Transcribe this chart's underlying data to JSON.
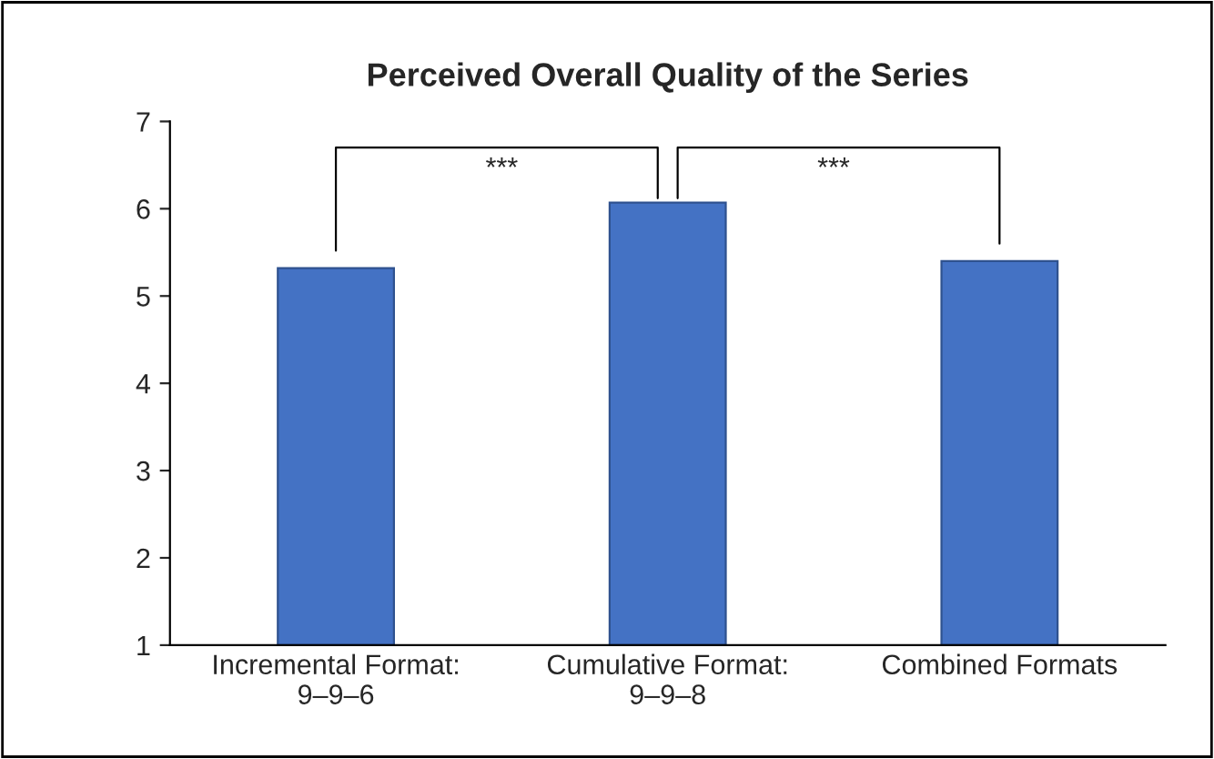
{
  "chart_data": {
    "type": "bar",
    "title": "Perceived Overall Quality of the Series",
    "categories": [
      "Incremental Format:\n9–9–6",
      "Cumulative Format:\n9–9–8",
      "Combined Formats"
    ],
    "values": [
      5.32,
      6.07,
      5.4
    ],
    "color": "#4472c4",
    "ylim": [
      1,
      7
    ],
    "yticks": [
      1,
      2,
      3,
      4,
      5,
      6,
      7
    ],
    "grid": false,
    "legend": false,
    "annotations": [
      "***",
      "***"
    ]
  }
}
